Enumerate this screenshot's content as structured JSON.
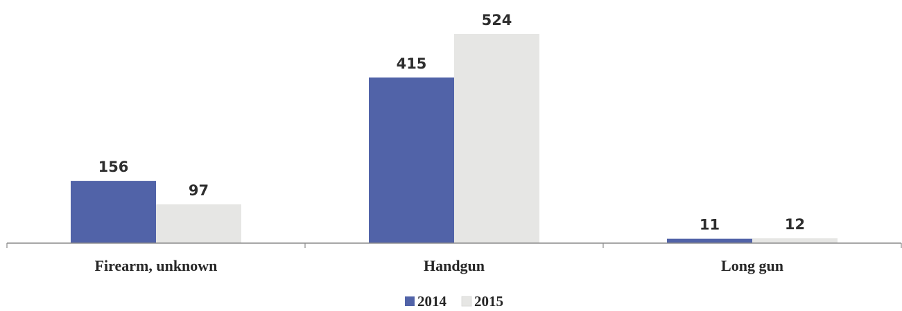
{
  "chart_data": {
    "type": "bar",
    "title": "",
    "xlabel": "",
    "ylabel": "",
    "categories": [
      "Firearm, unknown",
      "Handgun",
      "Long gun"
    ],
    "series": [
      {
        "name": "2014",
        "values": [
          156,
          415,
          11
        ],
        "color": "#5163a8"
      },
      {
        "name": "2015",
        "values": [
          97,
          524,
          12
        ],
        "color": "#e6e6e4"
      }
    ],
    "ylim": [
      0,
      524
    ],
    "grid": false,
    "legend": "bottom-center",
    "data_labels": true
  }
}
